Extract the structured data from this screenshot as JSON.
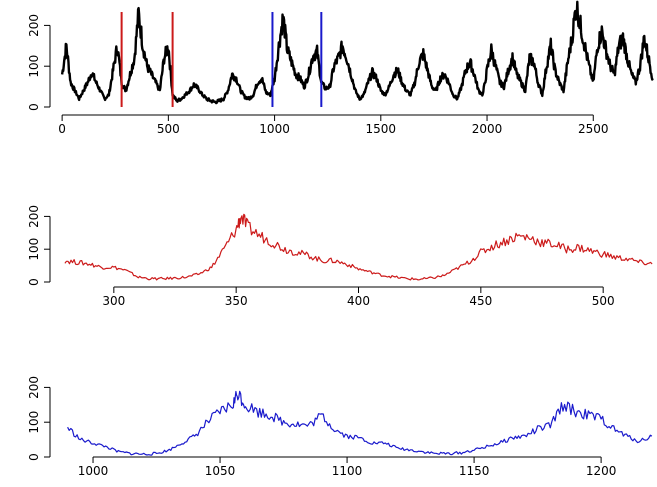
{
  "chart_data": [
    {
      "type": "line",
      "title": "",
      "xlabel": "",
      "ylabel": "",
      "xlim": [
        -10,
        2800
      ],
      "ylim": [
        0,
        250
      ],
      "x_ticks": [
        "0",
        "500",
        "1000",
        "1500",
        "2000",
        "2500"
      ],
      "x_tick_values": [
        0,
        500,
        1000,
        1500,
        2000,
        2500
      ],
      "y_ticks": [
        "0",
        "100",
        "200"
      ],
      "y_tick_values": [
        0,
        100,
        200
      ],
      "series": [
        {
          "color": "#000000",
          "points": [
            [
              0,
              80
            ],
            [
              20,
              150
            ],
            [
              40,
              60
            ],
            [
              60,
              40
            ],
            [
              80,
              20
            ],
            [
              100,
              40
            ],
            [
              120,
              60
            ],
            [
              140,
              85
            ],
            [
              160,
              60
            ],
            [
              180,
              40
            ],
            [
              200,
              20
            ],
            [
              220,
              30
            ],
            [
              240,
              90
            ],
            [
              260,
              150
            ],
            [
              280,
              60
            ],
            [
              300,
              40
            ],
            [
              320,
              80
            ],
            [
              340,
              120
            ],
            [
              360,
              230
            ],
            [
              380,
              150
            ],
            [
              400,
              100
            ],
            [
              420,
              80
            ],
            [
              440,
              60
            ],
            [
              460,
              40
            ],
            [
              480,
              120
            ],
            [
              500,
              150
            ],
            [
              520,
              30
            ],
            [
              540,
              15
            ],
            [
              560,
              20
            ],
            [
              580,
              30
            ],
            [
              600,
              40
            ],
            [
              620,
              55
            ],
            [
              640,
              45
            ],
            [
              660,
              30
            ],
            [
              680,
              20
            ],
            [
              700,
              15
            ],
            [
              720,
              12
            ],
            [
              740,
              15
            ],
            [
              760,
              20
            ],
            [
              780,
              40
            ],
            [
              800,
              80
            ],
            [
              820,
              70
            ],
            [
              840,
              40
            ],
            [
              860,
              25
            ],
            [
              880,
              20
            ],
            [
              900,
              30
            ],
            [
              920,
              60
            ],
            [
              940,
              70
            ],
            [
              960,
              35
            ],
            [
              980,
              30
            ],
            [
              1000,
              70
            ],
            [
              1020,
              150
            ],
            [
              1040,
              220
            ],
            [
              1060,
              140
            ],
            [
              1080,
              110
            ],
            [
              1100,
              80
            ],
            [
              1120,
              70
            ],
            [
              1140,
              50
            ],
            [
              1160,
              80
            ],
            [
              1180,
              125
            ],
            [
              1200,
              135
            ],
            [
              1220,
              60
            ],
            [
              1240,
              45
            ],
            [
              1260,
              50
            ],
            [
              1280,
              100
            ],
            [
              1300,
              120
            ],
            [
              1320,
              150
            ],
            [
              1340,
              120
            ],
            [
              1360,
              80
            ],
            [
              1380,
              40
            ],
            [
              1400,
              20
            ],
            [
              1420,
              30
            ],
            [
              1440,
              60
            ],
            [
              1460,
              85
            ],
            [
              1480,
              70
            ],
            [
              1500,
              40
            ],
            [
              1520,
              30
            ],
            [
              1540,
              50
            ],
            [
              1560,
              80
            ],
            [
              1580,
              90
            ],
            [
              1600,
              60
            ],
            [
              1620,
              40
            ],
            [
              1640,
              30
            ],
            [
              1660,
              60
            ],
            [
              1680,
              110
            ],
            [
              1700,
              130
            ],
            [
              1720,
              90
            ],
            [
              1740,
              50
            ],
            [
              1760,
              40
            ],
            [
              1780,
              70
            ],
            [
              1800,
              80
            ],
            [
              1820,
              60
            ],
            [
              1840,
              30
            ],
            [
              1860,
              20
            ],
            [
              1880,
              50
            ],
            [
              1900,
              90
            ],
            [
              1920,
              110
            ],
            [
              1940,
              80
            ],
            [
              1960,
              40
            ],
            [
              1980,
              30
            ],
            [
              2000,
              90
            ],
            [
              2020,
              140
            ],
            [
              2040,
              100
            ],
            [
              2060,
              60
            ],
            [
              2080,
              50
            ],
            [
              2100,
              90
            ],
            [
              2120,
              120
            ],
            [
              2140,
              80
            ],
            [
              2160,
              60
            ],
            [
              2180,
              40
            ],
            [
              2200,
              120
            ],
            [
              2220,
              110
            ],
            [
              2240,
              60
            ],
            [
              2260,
              30
            ],
            [
              2280,
              100
            ],
            [
              2300,
              150
            ],
            [
              2320,
              90
            ],
            [
              2340,
              60
            ],
            [
              2360,
              40
            ],
            [
              2380,
              110
            ],
            [
              2400,
              170
            ],
            [
              2420,
              250
            ],
            [
              2440,
              200
            ],
            [
              2460,
              150
            ],
            [
              2480,
              100
            ],
            [
              2500,
              60
            ],
            [
              2520,
              150
            ],
            [
              2540,
              185
            ],
            [
              2560,
              140
            ],
            [
              2580,
              100
            ],
            [
              2600,
              80
            ],
            [
              2620,
              150
            ],
            [
              2640,
              170
            ],
            [
              2660,
              120
            ],
            [
              2680,
              80
            ],
            [
              2700,
              60
            ],
            [
              2720,
              100
            ],
            [
              2740,
              170
            ],
            [
              2760,
              120
            ],
            [
              2780,
              70
            ]
          ]
        }
      ],
      "highlights": [
        {
          "color": "#cc1a1a",
          "x_start": 280,
          "x_end": 520
        },
        {
          "color": "#1a1acc",
          "x_start": 990,
          "x_end": 1220
        }
      ]
    },
    {
      "type": "line",
      "title": "",
      "xlabel": "",
      "ylabel": "",
      "xlim": [
        278,
        522
      ],
      "ylim": [
        0,
        250
      ],
      "x_ticks": [
        "300",
        "350",
        "400",
        "450",
        "500"
      ],
      "x_tick_values": [
        300,
        350,
        400,
        450,
        500
      ],
      "y_ticks": [
        "0",
        "100",
        "200"
      ],
      "y_tick_values": [
        0,
        100,
        200
      ],
      "series": [
        {
          "color": "#cc1a1a",
          "points": [
            [
              280,
              65
            ],
            [
              285,
              60
            ],
            [
              290,
              55
            ],
            [
              295,
              45
            ],
            [
              300,
              45
            ],
            [
              305,
              35
            ],
            [
              310,
              15
            ],
            [
              315,
              10
            ],
            [
              320,
              10
            ],
            [
              325,
              12
            ],
            [
              330,
              15
            ],
            [
              335,
              25
            ],
            [
              340,
              45
            ],
            [
              345,
              100
            ],
            [
              350,
              160
            ],
            [
              352,
              200
            ],
            [
              355,
              165
            ],
            [
              360,
              140
            ],
            [
              365,
              120
            ],
            [
              370,
              100
            ],
            [
              375,
              90
            ],
            [
              380,
              80
            ],
            [
              385,
              65
            ],
            [
              390,
              65
            ],
            [
              395,
              55
            ],
            [
              400,
              40
            ],
            [
              405,
              30
            ],
            [
              410,
              20
            ],
            [
              415,
              15
            ],
            [
              420,
              10
            ],
            [
              425,
              8
            ],
            [
              430,
              12
            ],
            [
              435,
              20
            ],
            [
              440,
              40
            ],
            [
              445,
              60
            ],
            [
              450,
              90
            ],
            [
              455,
              110
            ],
            [
              460,
              125
            ],
            [
              465,
              140
            ],
            [
              470,
              135
            ],
            [
              475,
              120
            ],
            [
              480,
              115
            ],
            [
              485,
              100
            ],
            [
              490,
              105
            ],
            [
              495,
              95
            ],
            [
              500,
              85
            ],
            [
              505,
              75
            ],
            [
              510,
              70
            ],
            [
              515,
              60
            ],
            [
              520,
              55
            ]
          ]
        }
      ]
    },
    {
      "type": "line",
      "title": "",
      "xlabel": "",
      "ylabel": "",
      "xlim": [
        987,
        1222
      ],
      "ylim": [
        0,
        250
      ],
      "x_ticks": [
        "1000",
        "1050",
        "1100",
        "1150",
        "1200"
      ],
      "x_tick_values": [
        1000,
        1050,
        1100,
        1150,
        1200
      ],
      "y_ticks": [
        "0",
        "100",
        "200"
      ],
      "y_tick_values": [
        0,
        100,
        200
      ],
      "series": [
        {
          "color": "#1a1acc",
          "points": [
            [
              990,
              85
            ],
            [
              995,
              50
            ],
            [
              1000,
              40
            ],
            [
              1005,
              30
            ],
            [
              1010,
              15
            ],
            [
              1015,
              10
            ],
            [
              1020,
              8
            ],
            [
              1025,
              10
            ],
            [
              1030,
              20
            ],
            [
              1035,
              40
            ],
            [
              1040,
              60
            ],
            [
              1045,
              100
            ],
            [
              1050,
              130
            ],
            [
              1055,
              150
            ],
            [
              1057,
              185
            ],
            [
              1060,
              150
            ],
            [
              1065,
              130
            ],
            [
              1070,
              120
            ],
            [
              1075,
              100
            ],
            [
              1080,
              95
            ],
            [
              1085,
              90
            ],
            [
              1090,
              120
            ],
            [
              1095,
              80
            ],
            [
              1100,
              60
            ],
            [
              1105,
              55
            ],
            [
              1110,
              40
            ],
            [
              1115,
              40
            ],
            [
              1120,
              25
            ],
            [
              1125,
              20
            ],
            [
              1130,
              15
            ],
            [
              1135,
              10
            ],
            [
              1140,
              10
            ],
            [
              1145,
              12
            ],
            [
              1150,
              20
            ],
            [
              1155,
              30
            ],
            [
              1160,
              40
            ],
            [
              1165,
              55
            ],
            [
              1170,
              60
            ],
            [
              1175,
              80
            ],
            [
              1180,
              90
            ],
            [
              1185,
              150
            ],
            [
              1190,
              130
            ],
            [
              1195,
              120
            ],
            [
              1200,
              110
            ],
            [
              1205,
              80
            ],
            [
              1210,
              60
            ],
            [
              1215,
              45
            ],
            [
              1220,
              60
            ]
          ]
        }
      ]
    }
  ]
}
